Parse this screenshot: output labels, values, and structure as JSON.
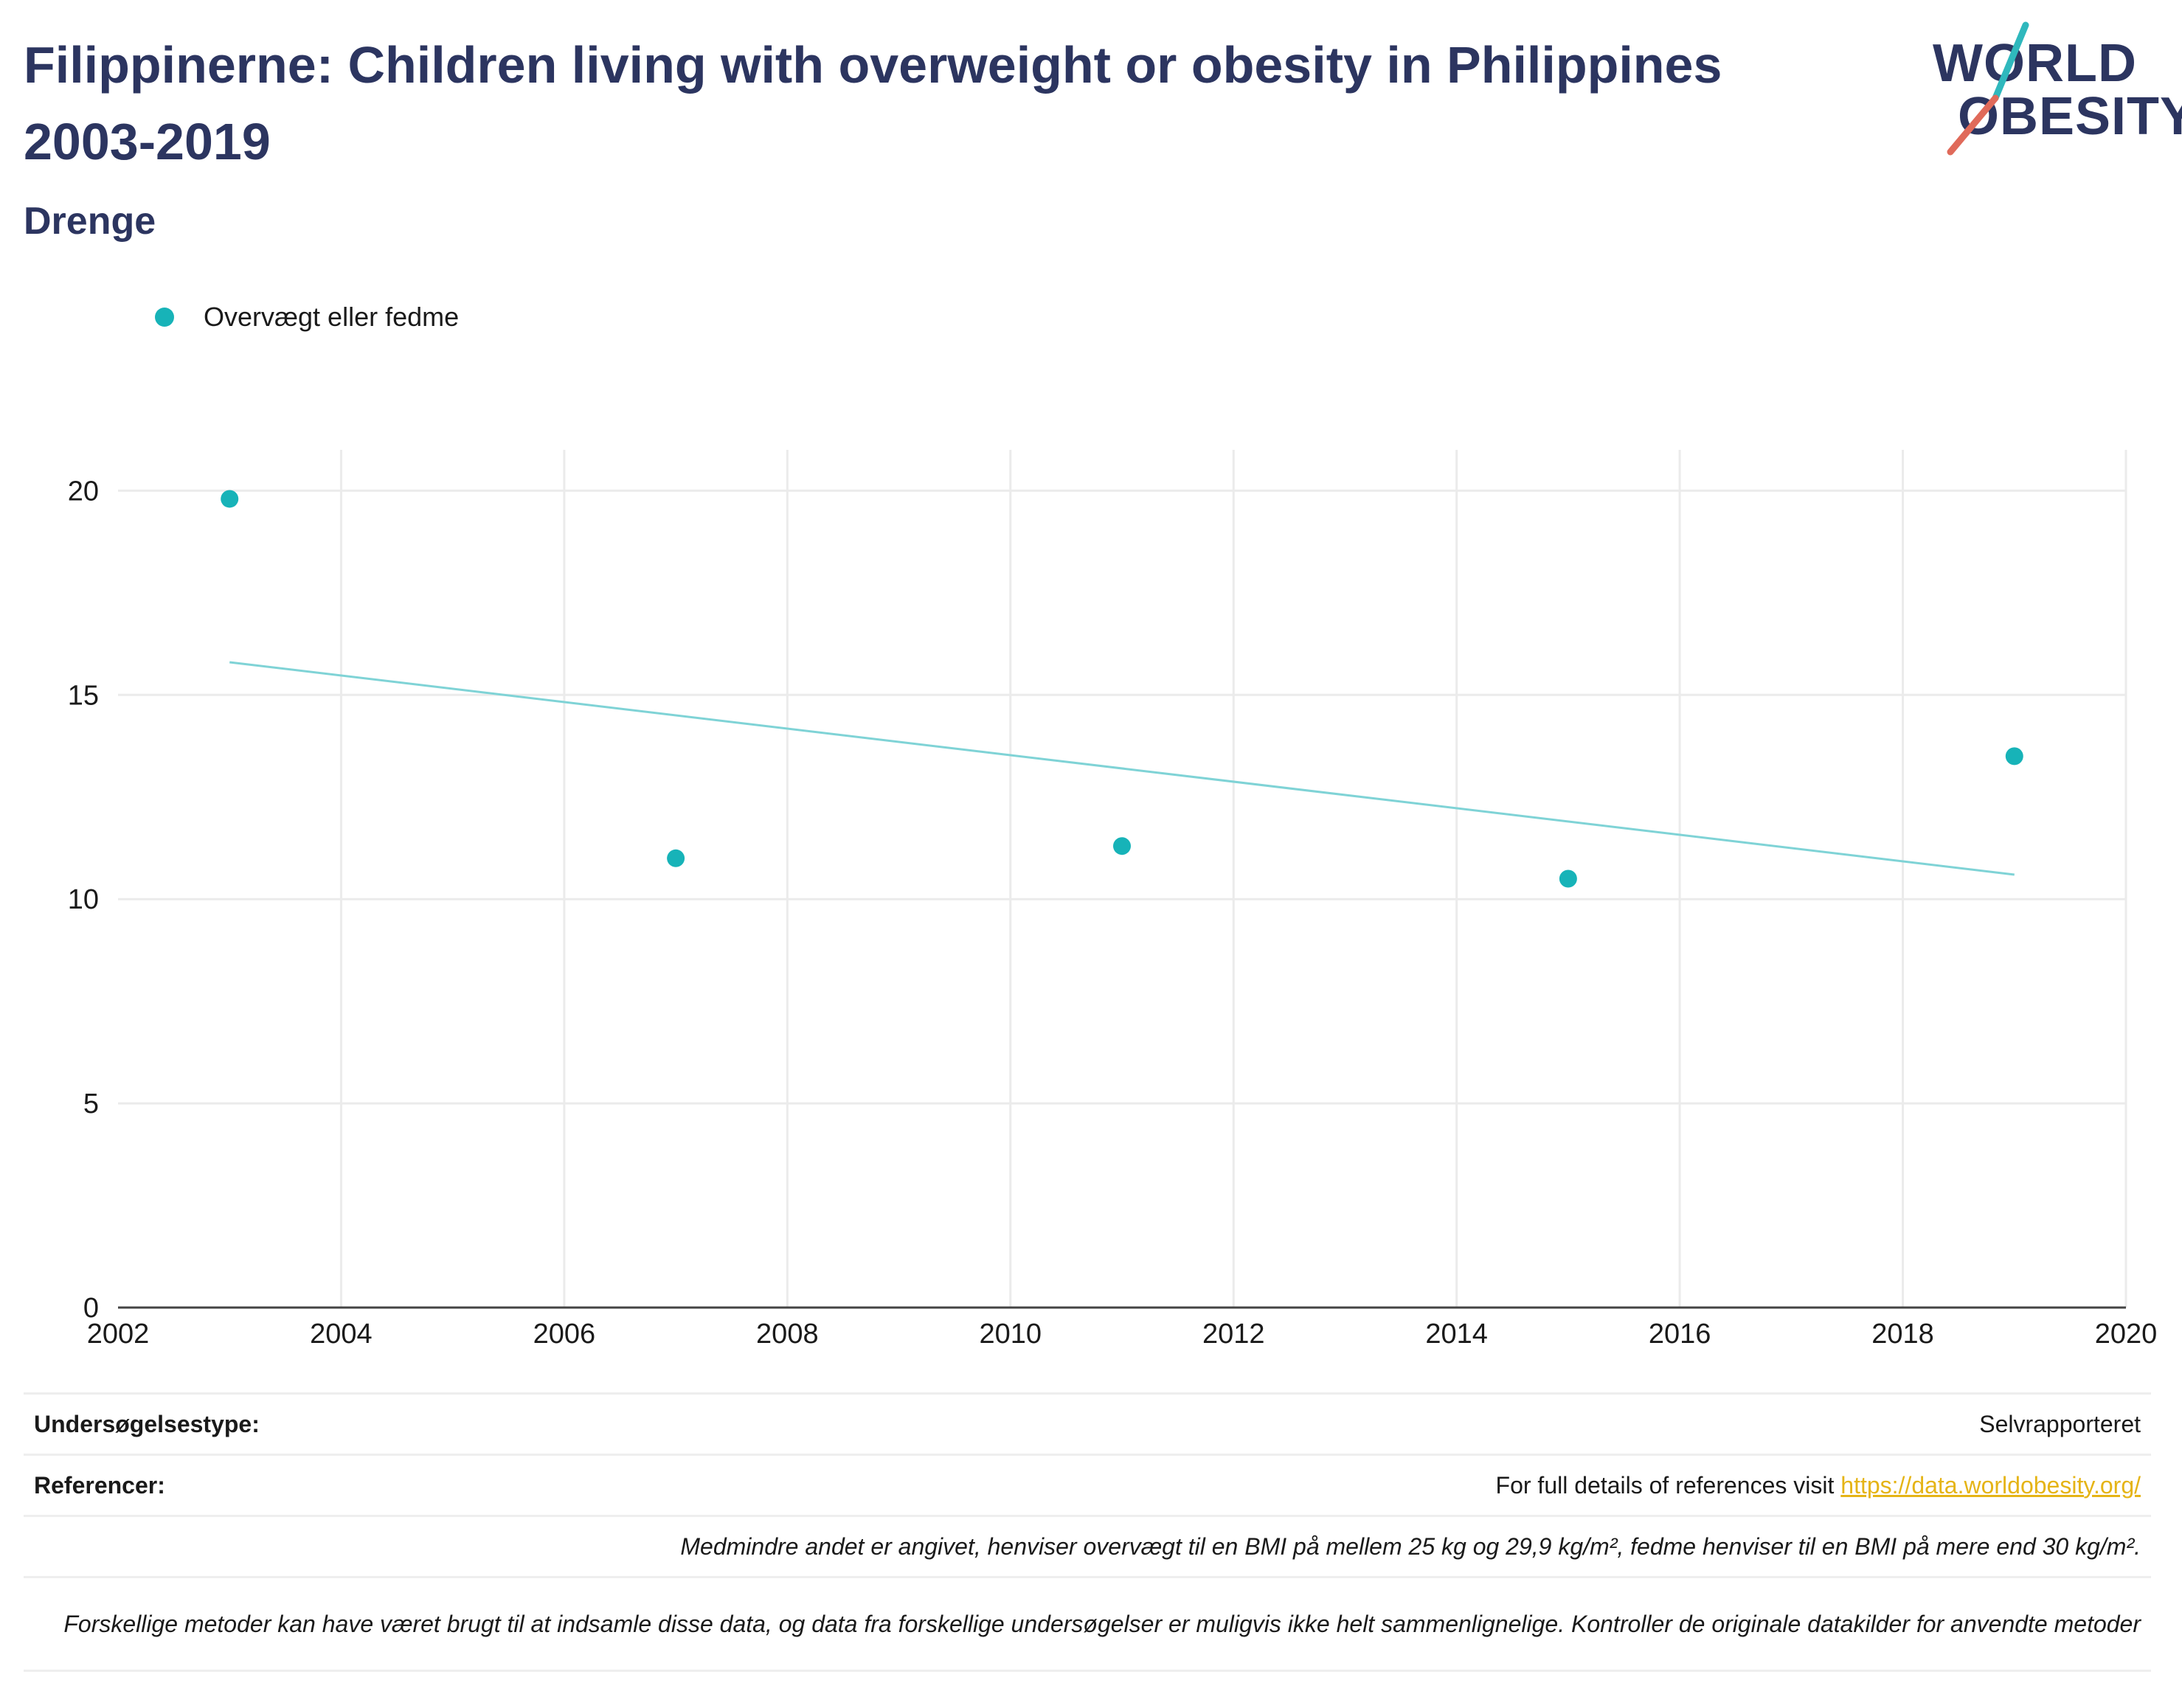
{
  "header": {
    "title": "Filippinerne: Children living with overweight or obesity in Philippines 2003-2019",
    "subtitle": "Drenge"
  },
  "logo": {
    "line1": "WORLD",
    "line2": "OBESITY",
    "accent_teal": "#2fb8bd",
    "accent_red": "#e06a5a"
  },
  "colors": {
    "marker": "#17b3b8",
    "trend": "#7fd3d6",
    "title": "#2c3560",
    "link": "#e5b416"
  },
  "chart_data": {
    "type": "scatter",
    "title": "Filippinerne: Children living with overweight or obesity in Philippines 2003-2019",
    "subtitle": "Drenge",
    "xlabel": "",
    "ylabel": "",
    "xlim": [
      2002,
      2020
    ],
    "ylim": [
      0,
      21
    ],
    "x_ticks": [
      2002,
      2004,
      2006,
      2008,
      2010,
      2012,
      2014,
      2016,
      2018,
      2020
    ],
    "y_ticks": [
      0,
      5,
      10,
      15,
      20
    ],
    "grid": true,
    "legend_position": "top-left",
    "series": [
      {
        "name": "Overvægt eller fedme",
        "x": [
          2003,
          2007,
          2011,
          2015,
          2019
        ],
        "y": [
          19.8,
          11.0,
          11.3,
          10.5,
          13.5
        ]
      }
    ],
    "trendline": {
      "x": [
        2003,
        2019
      ],
      "y": [
        15.8,
        10.6
      ]
    }
  },
  "footer": {
    "survey_label": "Undersøgelsestype:",
    "survey_value": "Selvrapporteret",
    "references_label": "Referencer:",
    "references_text": "For full details of references visit ",
    "references_link": "https://data.worldobesity.org/",
    "note1": "Medmindre andet er angivet, henviser overvægt til en BMI på mellem 25 kg og 29,9 kg/m², fedme henviser til en BMI på mere end 30 kg/m².",
    "note2": "Forskellige metoder kan have været brugt til at indsamle disse data, og data fra forskellige undersøgelser er muligvis ikke helt sammenlignelige. Kontroller de originale datakilder for anvendte metoder"
  }
}
